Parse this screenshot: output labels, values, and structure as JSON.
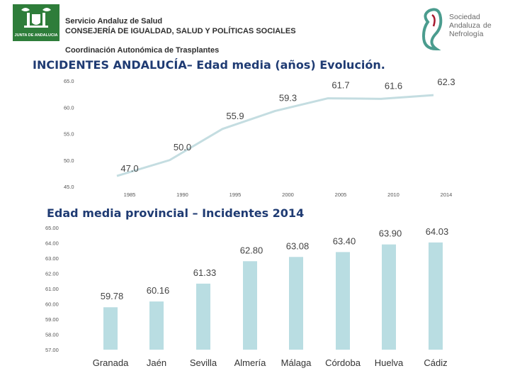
{
  "header": {
    "logo_left_caption": "JUNTA DE ANDALUCIA",
    "org_line1": "Servicio Andaluz de Salud",
    "org_line2": "CONSEJERÍA DE IGUALDAD, SALUD Y POLÍTICAS SOCIALES",
    "org_line3": "Coordinación Autonómica de Trasplantes",
    "logo_right_lines": [
      "Sociedad",
      "Andaluza",
      "de",
      "Nefrología"
    ]
  },
  "colors": {
    "title": "#1f3b73",
    "line": "#c4dde1",
    "bar": "#b9dde2",
    "logo_green": "#2e7d3a",
    "logo_red": "#a6192e",
    "sen_teal": "#4a9c8e"
  },
  "chart_data": [
    {
      "type": "line",
      "title": "INCIDENTES ANDALUCÍA– Edad media (años) Evolución.",
      "x": [
        "1985",
        "1990",
        "1995",
        "2000",
        "2005",
        "2010",
        "2014"
      ],
      "values": [
        47.0,
        50.0,
        55.9,
        59.3,
        61.7,
        61.6,
        62.3
      ],
      "value_labels": [
        "47.0",
        "50.0",
        "55.9",
        "59.3",
        "61.7",
        "61.6",
        "62.3"
      ],
      "yticks": [
        "45.0",
        "50.0",
        "55.0",
        "60.0",
        "65.0"
      ],
      "ylim": [
        45,
        65
      ],
      "xlabel": "",
      "ylabel": "",
      "grid": false
    },
    {
      "type": "bar",
      "title": "Edad media provincial – Incidentes 2014",
      "categories": [
        "Granada",
        "Jaén",
        "Sevilla",
        "Almería",
        "Málaga",
        "Córdoba",
        "Huelva",
        "Cádiz"
      ],
      "values": [
        59.78,
        60.16,
        61.33,
        62.8,
        63.08,
        63.4,
        63.9,
        64.03
      ],
      "value_labels": [
        "59.78",
        "60.16",
        "61.33",
        "62.80",
        "63.08",
        "63.40",
        "63.90",
        "64.03"
      ],
      "yticks": [
        "57.00",
        "58.00",
        "59.00",
        "60.00",
        "61.00",
        "62.00",
        "63.00",
        "64.00",
        "65.00"
      ],
      "ylim": [
        57,
        65
      ],
      "xlabel": "",
      "ylabel": "",
      "grid": false
    }
  ]
}
